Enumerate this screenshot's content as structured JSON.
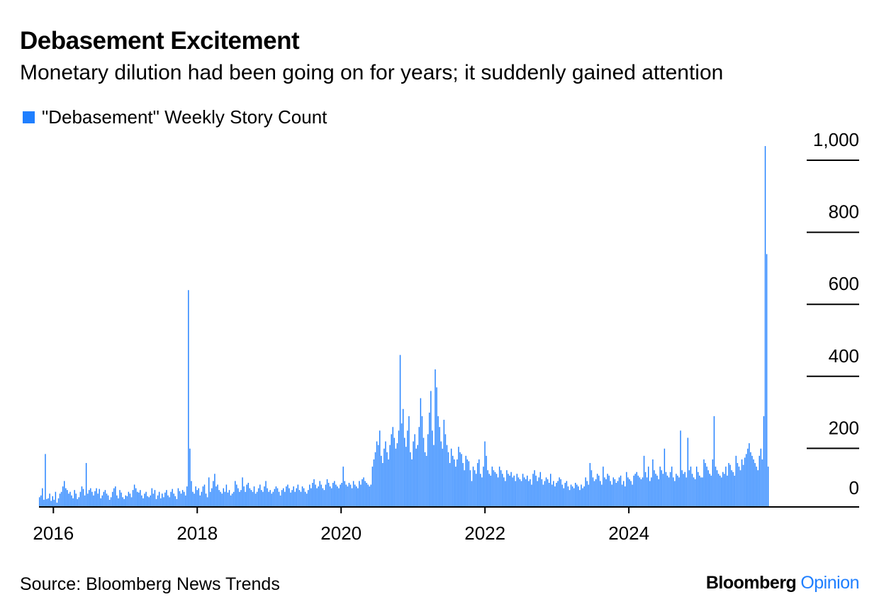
{
  "header": {
    "title": "Debasement Excitement",
    "subtitle": "Monetary dilution had been going on for years; it suddenly gained attention"
  },
  "footer": {
    "source": "Source: Bloomberg News Trends",
    "brand_name": "Bloomberg",
    "brand_suffix": "Opinion"
  },
  "colors": {
    "bar": "#1f7fff",
    "brand_suffix": "#1f7fff",
    "axis": "#000000"
  },
  "chart_data": {
    "type": "bar",
    "title": "Debasement Excitement",
    "subtitle": "Monetary dilution had been going on for years; it suddenly gained attention",
    "legend": [
      {
        "label": "\"Debasement\" Weekly Story Count",
        "color": "#1f7fff"
      }
    ],
    "legend_position": "top-left",
    "xlabel": "",
    "ylabel": "",
    "y_axis_side": "right",
    "ylim": [
      0,
      1000
    ],
    "y_ticks": [
      0,
      200,
      400,
      600,
      800,
      1000
    ],
    "y_tick_labels": [
      "0",
      "200",
      "400",
      "600",
      "800",
      "1,000"
    ],
    "x_range": [
      2015.8,
      2025.95
    ],
    "x_ticks": [
      2016,
      2018,
      2020,
      2022,
      2024
    ],
    "x_tick_labels": [
      "2016",
      "2018",
      "2020",
      "2022",
      "2024"
    ],
    "series": [
      {
        "name": "\"Debasement\" Weekly Story Count",
        "frequency": "weekly",
        "x_start": 2015.8,
        "x_step": 0.01923,
        "values": [
          25,
          30,
          50,
          18,
          145,
          20,
          22,
          35,
          15,
          28,
          18,
          40,
          10,
          22,
          35,
          40,
          55,
          70,
          50,
          45,
          35,
          40,
          30,
          22,
          45,
          35,
          20,
          25,
          40,
          55,
          48,
          30,
          120,
          35,
          45,
          50,
          40,
          30,
          42,
          50,
          35,
          48,
          22,
          30,
          40,
          45,
          35,
          30,
          18,
          25,
          40,
          50,
          55,
          30,
          22,
          45,
          38,
          25,
          20,
          30,
          28,
          40,
          35,
          25,
          45,
          60,
          50,
          40,
          38,
          45,
          30,
          22,
          35,
          40,
          28,
          25,
          30,
          50,
          35,
          45,
          20,
          30,
          40,
          22,
          35,
          25,
          38,
          45,
          30,
          25,
          40,
          48,
          35,
          28,
          20,
          50,
          42,
          35,
          45,
          40,
          30,
          55,
          600,
          160,
          70,
          40,
          35,
          55,
          45,
          50,
          30,
          40,
          55,
          60,
          35,
          25,
          80,
          40,
          50,
          70,
          90,
          55,
          60,
          45,
          40,
          35,
          50,
          40,
          60,
          38,
          45,
          30,
          35,
          40,
          70,
          60,
          50,
          40,
          45,
          80,
          55,
          40,
          60,
          65,
          50,
          45,
          40,
          55,
          35,
          40,
          50,
          60,
          45,
          40,
          55,
          70,
          50,
          40,
          45,
          35,
          40,
          48,
          55,
          50,
          40,
          30,
          45,
          50,
          40,
          55,
          60,
          50,
          38,
          45,
          55,
          40,
          50,
          60,
          45,
          40,
          55,
          50,
          40,
          35,
          45,
          60,
          50,
          65,
          75,
          60,
          50,
          55,
          70,
          60,
          50,
          45,
          60,
          75,
          65,
          55,
          50,
          65,
          70,
          60,
          55,
          50,
          60,
          65,
          110,
          70,
          60,
          55,
          65,
          60,
          50,
          70,
          60,
          55,
          50,
          70,
          60,
          75,
          80,
          70,
          65,
          60,
          55,
          60,
          110,
          130,
          150,
          180,
          170,
          210,
          140,
          120,
          160,
          180,
          150,
          130,
          170,
          200,
          220,
          190,
          160,
          175,
          210,
          420,
          230,
          270,
          190,
          165,
          210,
          250,
          150,
          130,
          180,
          200,
          160,
          170,
          220,
          300,
          250,
          190,
          150,
          140,
          200,
          260,
          320,
          210,
          170,
          380,
          330,
          250,
          220,
          180,
          160,
          240,
          200,
          170,
          150,
          120,
          160,
          140,
          130,
          110,
          130,
          165,
          150,
          145,
          120,
          100,
          140,
          130,
          125,
          100,
          70,
          110,
          100,
          90,
          120,
          130,
          90,
          80,
          110,
          180,
          140,
          100,
          90,
          85,
          110,
          100,
          95,
          90,
          80,
          110,
          100,
          90,
          80,
          70,
          100,
          90,
          85,
          95,
          80,
          85,
          70,
          90,
          80,
          75,
          70,
          90,
          80,
          75,
          85,
          70,
          75,
          60,
          90,
          100,
          85,
          70,
          80,
          95,
          75,
          60,
          70,
          80,
          75,
          65,
          90,
          60,
          70,
          55,
          65,
          70,
          80,
          75,
          60,
          50,
          65,
          70,
          55,
          45,
          60,
          55,
          50,
          65,
          60,
          55,
          45,
          60,
          50,
          55,
          80,
          70,
          60,
          120,
          100,
          80,
          70,
          75,
          90,
          85,
          70,
          60,
          110,
          80,
          75,
          90,
          85,
          70,
          60,
          80,
          75,
          65,
          70,
          80,
          85,
          60,
          70,
          55,
          95,
          80,
          75,
          70,
          60,
          85,
          90,
          95,
          85,
          80,
          75,
          80,
          140,
          95,
          80,
          110,
          70,
          80,
          130,
          100,
          90,
          85,
          75,
          110,
          100,
          90,
          160,
          95,
          85,
          80,
          95,
          110,
          80,
          70,
          90,
          85,
          80,
          210,
          100,
          90,
          95,
          80,
          190,
          100,
          110,
          90,
          80,
          75,
          110,
          95,
          85,
          80,
          80,
          130,
          120,
          110,
          100,
          90,
          85,
          130,
          250,
          110,
          100,
          90,
          85,
          80,
          95,
          90,
          110,
          85,
          120,
          115,
          100,
          95,
          85,
          140,
          120,
          110,
          100,
          130,
          115,
          135,
          145,
          160,
          175,
          150,
          140,
          130,
          120,
          110,
          100,
          140,
          160,
          130,
          250,
          1000,
          700,
          110
        ]
      }
    ]
  }
}
